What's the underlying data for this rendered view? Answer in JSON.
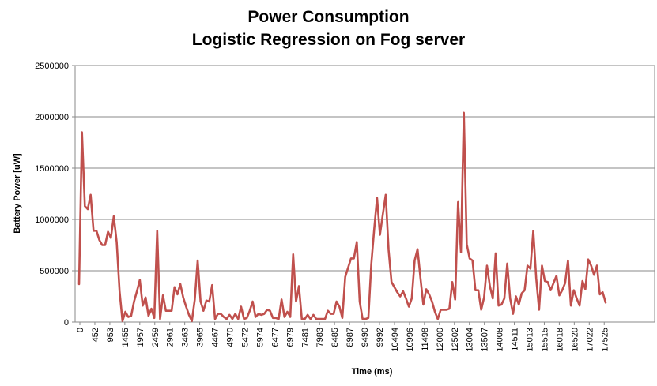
{
  "chart_data": {
    "type": "line",
    "title": "Power Consumption",
    "subtitle": "Logistic Regression on Fog server",
    "xlabel": "Time (ms)",
    "ylabel": "Battery Power [uW]",
    "ylim": [
      0,
      2500000
    ],
    "y_ticks": [
      "0",
      "500000",
      "1000000",
      "1500000",
      "2000000",
      "2500000"
    ],
    "x_ticks": [
      "0",
      "452",
      "953",
      "1455",
      "1957",
      "2459",
      "2961",
      "3463",
      "3965",
      "4467",
      "4970",
      "5472",
      "5974",
      "6477",
      "6979",
      "7481",
      "7983",
      "8485",
      "8987",
      "9490",
      "9992",
      "10494",
      "10996",
      "11498",
      "12000",
      "12502",
      "13004",
      "13507",
      "14008",
      "14511",
      "15013",
      "15515",
      "16018",
      "16520",
      "17022",
      "17525"
    ],
    "grid": "horizontal",
    "legend": "none",
    "series_color": "#C0504D",
    "series": [
      {
        "values": [
          370000,
          1850000,
          1130000,
          1100000,
          1240000,
          890000,
          890000,
          800000,
          750000,
          750000,
          880000,
          820000,
          1030000,
          780000,
          300000,
          10000,
          100000,
          50000,
          60000,
          200000,
          300000,
          410000,
          160000,
          240000,
          60000,
          130000,
          40000,
          890000,
          30000,
          260000,
          110000,
          110000,
          110000,
          340000,
          270000,
          370000,
          240000,
          150000,
          70000,
          10000,
          220000,
          600000,
          200000,
          110000,
          210000,
          200000,
          360000,
          30000,
          80000,
          80000,
          50000,
          30000,
          70000,
          30000,
          80000,
          30000,
          150000,
          30000,
          40000,
          110000,
          200000,
          50000,
          80000,
          70000,
          80000,
          120000,
          110000,
          40000,
          40000,
          30000,
          220000,
          50000,
          100000,
          50000,
          660000,
          200000,
          350000,
          30000,
          30000,
          70000,
          30000,
          70000,
          30000,
          30000,
          30000,
          30000,
          110000,
          80000,
          80000,
          200000,
          150000,
          40000,
          440000,
          530000,
          620000,
          620000,
          780000,
          200000,
          30000,
          30000,
          40000,
          560000,
          900000,
          1210000,
          850000,
          1050000,
          1240000,
          700000,
          390000,
          340000,
          290000,
          250000,
          300000,
          230000,
          150000,
          230000,
          600000,
          710000,
          430000,
          170000,
          320000,
          270000,
          200000,
          100000,
          30000,
          120000,
          120000,
          120000,
          130000,
          390000,
          220000,
          1170000,
          680000,
          2040000,
          760000,
          620000,
          600000,
          310000,
          310000,
          120000,
          240000,
          550000,
          350000,
          230000,
          670000,
          160000,
          170000,
          230000,
          570000,
          230000,
          80000,
          250000,
          170000,
          280000,
          310000,
          550000,
          520000,
          890000,
          430000,
          120000,
          550000,
          400000,
          390000,
          310000,
          380000,
          450000,
          260000,
          310000,
          380000,
          600000,
          160000,
          310000,
          230000,
          160000,
          400000,
          320000,
          610000,
          550000,
          460000,
          550000,
          270000,
          290000,
          190000
        ]
      }
    ]
  }
}
